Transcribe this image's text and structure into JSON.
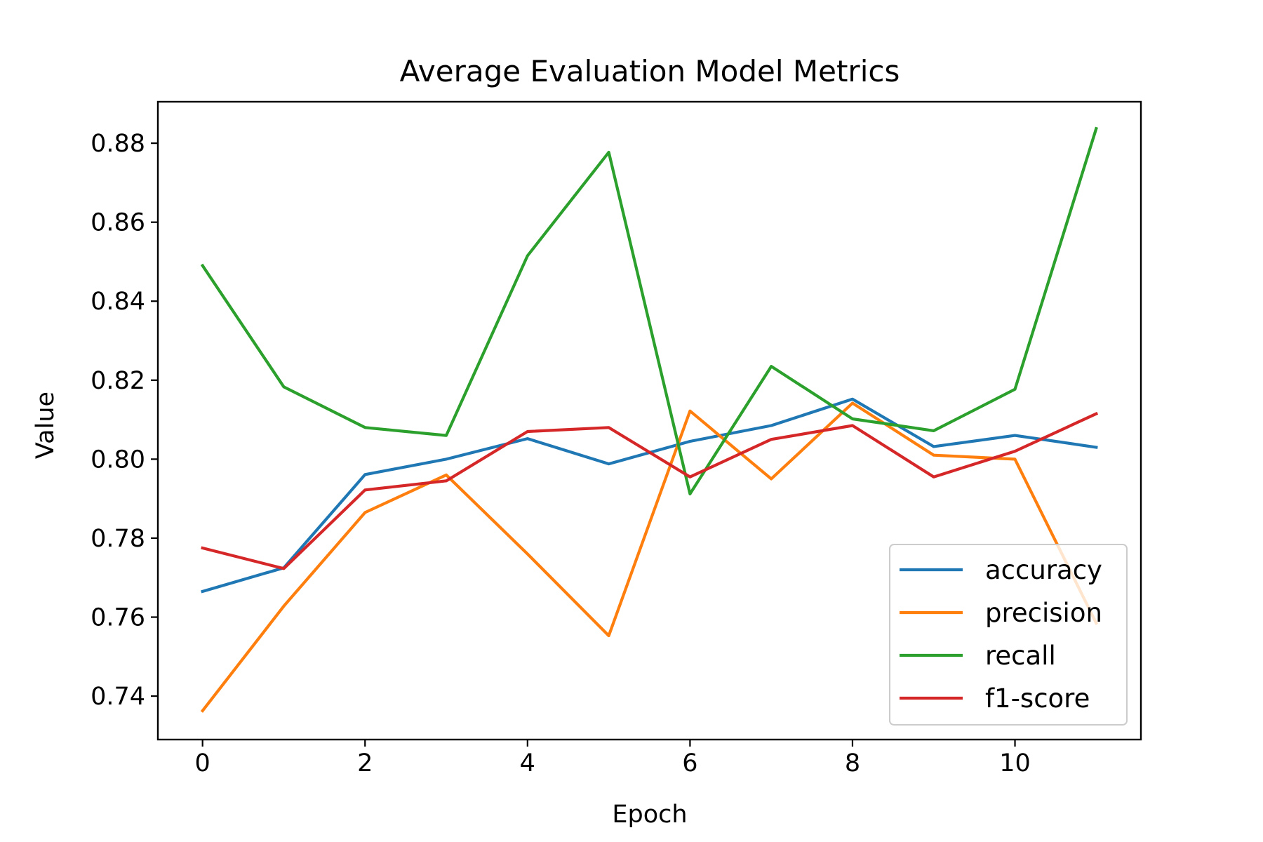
{
  "chart_data": {
    "type": "line",
    "title": "Average Evaluation Model Metrics",
    "xlabel": "Epoch",
    "ylabel": "Value",
    "x": [
      0,
      1,
      2,
      3,
      4,
      5,
      6,
      7,
      8,
      9,
      10,
      11
    ],
    "xlim": [
      -0.55,
      11.55
    ],
    "ylim": [
      0.729,
      0.8905
    ],
    "xticks": [
      0,
      2,
      4,
      6,
      8,
      10
    ],
    "xtick_labels": [
      "0",
      "2",
      "4",
      "6",
      "8",
      "10"
    ],
    "yticks": [
      0.74,
      0.76,
      0.78,
      0.8,
      0.82,
      0.84,
      0.86,
      0.88
    ],
    "ytick_labels": [
      "0.74",
      "0.76",
      "0.78",
      "0.80",
      "0.82",
      "0.84",
      "0.86",
      "0.88"
    ],
    "grid": false,
    "legend_position": "lower-right",
    "series": [
      {
        "name": "accuracy",
        "color": "#1f77b4",
        "values": [
          0.7665,
          0.7725,
          0.7961,
          0.8,
          0.8052,
          0.7988,
          0.8045,
          0.8085,
          0.8152,
          0.8032,
          0.806,
          0.803
        ]
      },
      {
        "name": "precision",
        "color": "#ff7f0e",
        "values": [
          0.7363,
          0.7628,
          0.7865,
          0.796,
          0.776,
          0.7553,
          0.8122,
          0.795,
          0.8142,
          0.801,
          0.8,
          0.7585
        ]
      },
      {
        "name": "recall",
        "color": "#2ca02c",
        "values": [
          0.849,
          0.8183,
          0.808,
          0.806,
          0.8515,
          0.8777,
          0.7912,
          0.8235,
          0.8102,
          0.8072,
          0.8177,
          0.8837
        ]
      },
      {
        "name": "f1-score",
        "color": "#d62728",
        "values": [
          0.7775,
          0.7723,
          0.7922,
          0.7945,
          0.807,
          0.808,
          0.7955,
          0.805,
          0.8085,
          0.7955,
          0.802,
          0.8115
        ]
      }
    ]
  }
}
